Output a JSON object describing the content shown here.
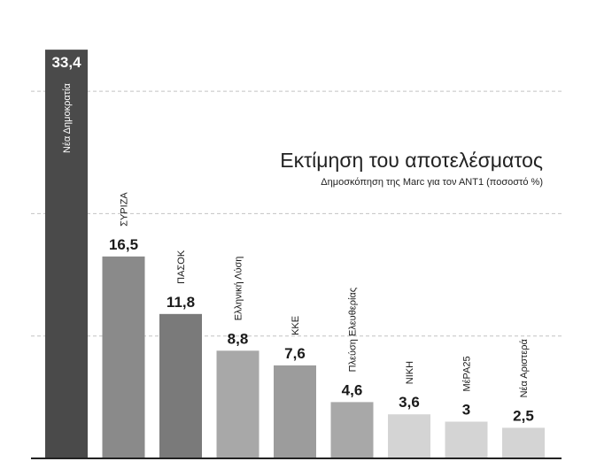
{
  "chart_data": {
    "type": "bar",
    "title": "Εκτίμηση του αποτελέσματος",
    "subtitle": "Δημοσκόπηση της Marc για τον ΑΝΤ1 (ποσοστό %)",
    "categories": [
      "Νέα Δημοκρατία",
      "ΣΥΡΙΖΑ",
      "ΠΑΣΟΚ",
      "Ελληνική Λύση",
      "ΚΚΕ",
      "Πλεύση Ελευθερίας",
      "ΝΙΚΗ",
      "ΜέΡΑ25",
      "Νέα Αριστερά"
    ],
    "values": [
      33.4,
      16.5,
      11.8,
      8.8,
      7.6,
      4.6,
      3.6,
      3,
      2.5
    ],
    "value_labels": [
      "33,4",
      "16,5",
      "11,8",
      "8,8",
      "7,6",
      "4,6",
      "3,6",
      "3",
      "2,5"
    ],
    "colors": [
      "#4a4a4a",
      "#8a8a8a",
      "#7a7a7a",
      "#a8a8a8",
      "#9c9c9c",
      "#a8a8a8",
      "#d4d4d4",
      "#d4d4d4",
      "#d4d4d4"
    ],
    "ylim": [
      0,
      35
    ],
    "grid": "dashed horizontal",
    "legend": "none"
  }
}
